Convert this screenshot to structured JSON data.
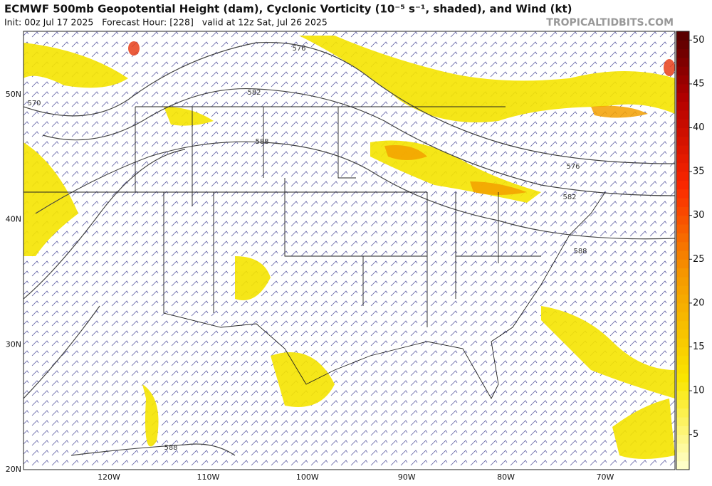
{
  "header": {
    "title": "ECMWF 500mb Geopotential Height (dam), Cyclonic Vorticity (10⁻⁵ s⁻¹, shaded), and Wind (kt)",
    "subtitle": "Init: 00z Jul 17 2025   Forecast Hour: [228]   valid at 12z Sat, Jul 26 2025",
    "watermark": "TROPICALTIDBITS.COM"
  },
  "map": {
    "lat_labels": [
      "50N",
      "40N",
      "30N",
      "20N"
    ],
    "lon_labels": [
      "120W",
      "110W",
      "100W",
      "90W",
      "80W",
      "70W"
    ],
    "contour_labels": [
      "570",
      "576",
      "576",
      "582",
      "582",
      "588",
      "588",
      "588"
    ]
  },
  "colorbar": {
    "ticks": [
      5,
      10,
      15,
      20,
      25,
      30,
      35,
      40,
      45,
      50
    ],
    "range": [
      1,
      51
    ]
  }
}
